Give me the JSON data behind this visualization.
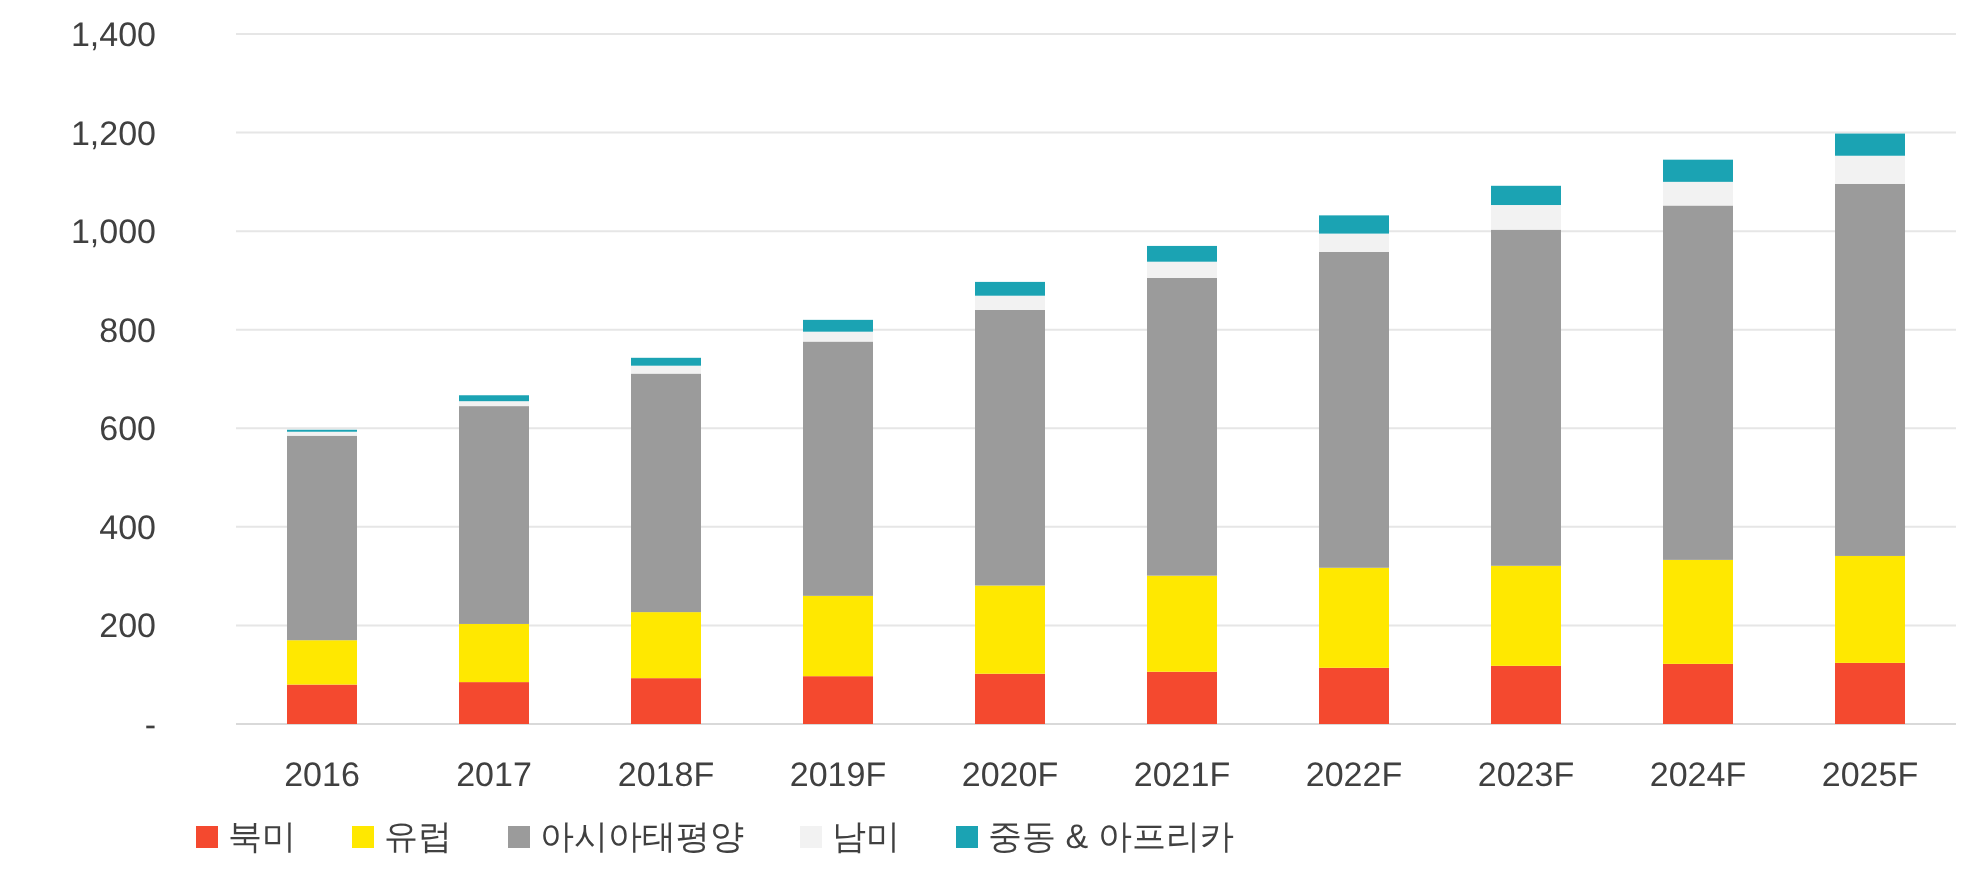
{
  "chart_data": {
    "type": "bar",
    "stacked": true,
    "categories": [
      "2016",
      "2017",
      "2018F",
      "2019F",
      "2020F",
      "2021F",
      "2022F",
      "2023F",
      "2024F",
      "2025F"
    ],
    "series": [
      {
        "name": "북미",
        "color": "#f4492f",
        "values": [
          80,
          85,
          93,
          97,
          102,
          106,
          114,
          118,
          122,
          124
        ]
      },
      {
        "name": "유럽",
        "color": "#ffe800",
        "values": [
          90,
          118,
          134,
          163,
          179,
          195,
          203,
          203,
          211,
          217
        ]
      },
      {
        "name": "아시아태평양",
        "color": "#9b9b9b",
        "values": [
          415,
          442,
          484,
          516,
          559,
          604,
          641,
          682,
          719,
          755
        ]
      },
      {
        "name": "남미",
        "color": "#f2f2f2",
        "values": [
          8,
          10,
          16,
          20,
          29,
          33,
          37,
          50,
          48,
          57
        ]
      },
      {
        "name": "중동 & 아프리카",
        "color": "#1ba3b3",
        "values": [
          4,
          12,
          16,
          24,
          28,
          32,
          37,
          39,
          45,
          45
        ]
      }
    ],
    "ylim": [
      0,
      1400
    ],
    "yticks": [
      {
        "value": 0,
        "label": "-"
      },
      200,
      400,
      600,
      800,
      {
        "value": 1000,
        "label": "1,000"
      },
      {
        "value": 1200,
        "label": "1,200"
      },
      {
        "value": 1400,
        "label": "1,400"
      }
    ],
    "grid": "y",
    "legend": "bottom"
  }
}
